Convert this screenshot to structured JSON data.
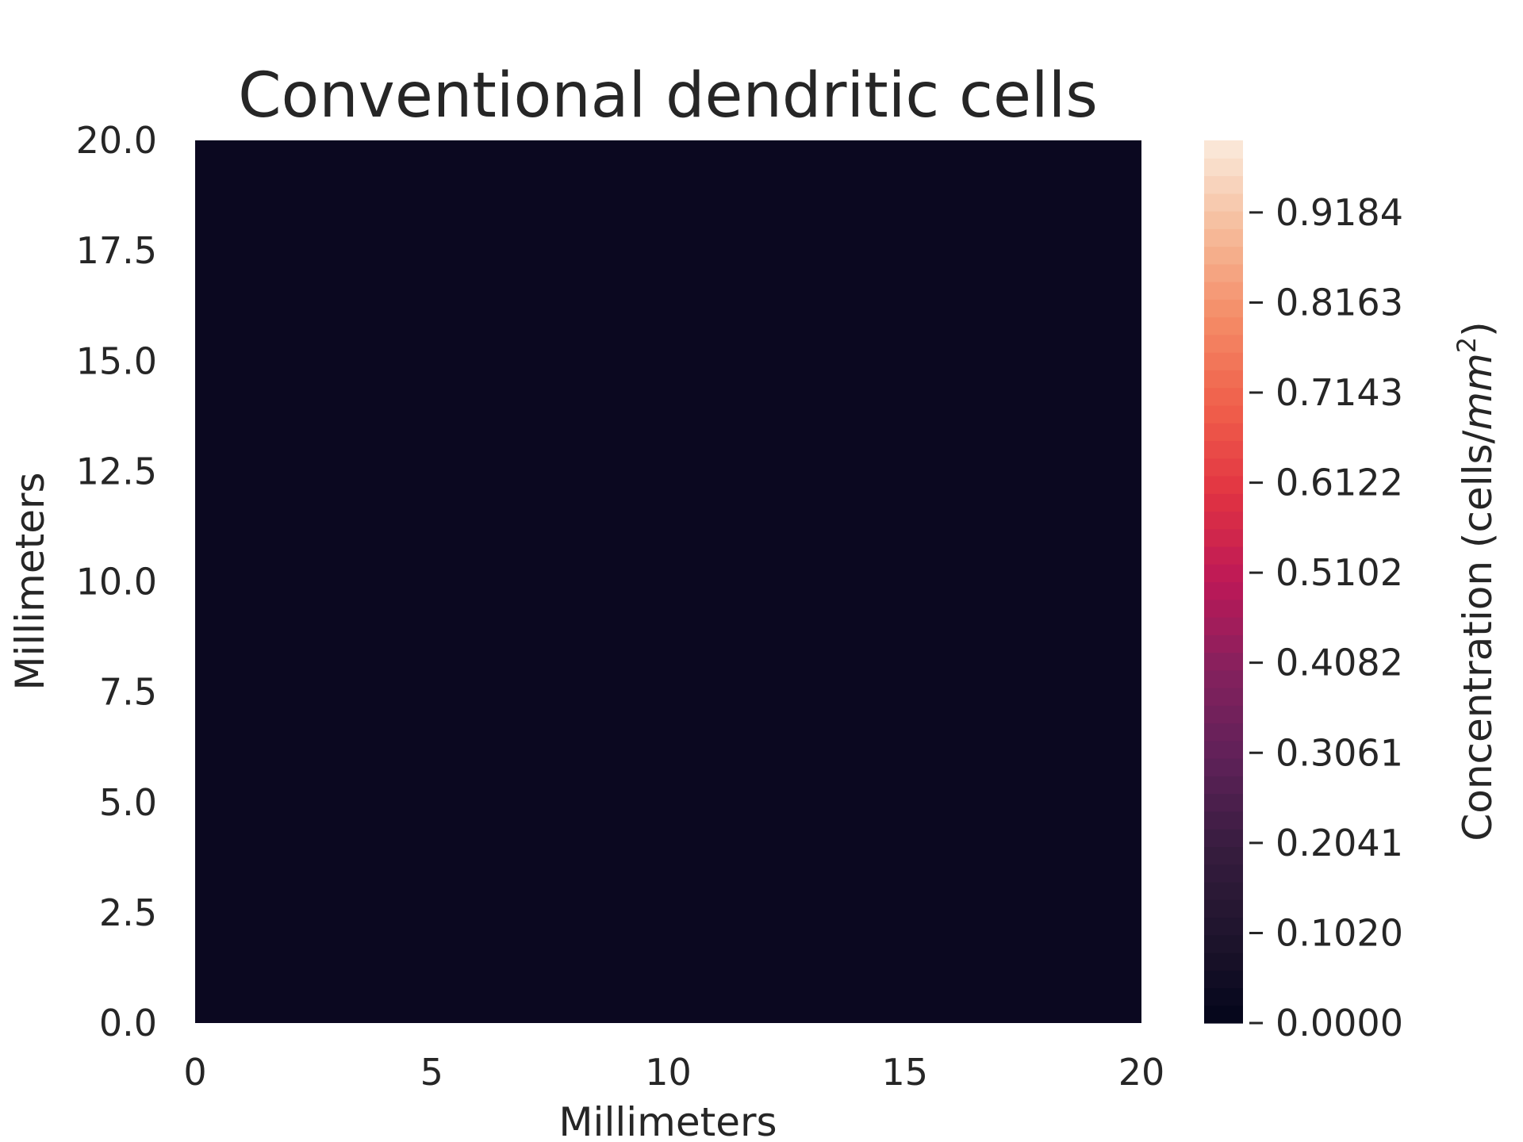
{
  "chart_data": {
    "type": "heatmap",
    "title": "Conventional dendritic cells",
    "xlabel": "Millimeters",
    "ylabel": "Millimeters",
    "xlim": [
      0,
      20
    ],
    "ylim": [
      0,
      20
    ],
    "x_ticks": [
      "0",
      "5",
      "10",
      "15",
      "20"
    ],
    "y_ticks": [
      "0.0",
      "2.5",
      "5.0",
      "7.5",
      "10.0",
      "12.5",
      "15.0",
      "17.5",
      "20.0"
    ],
    "grid": false,
    "value": 0.0,
    "colorbar": {
      "label": "Concentration (cells/",
      "label_unit": "mm",
      "label_unit_exp": "2",
      "label_close": ")",
      "range": [
        0,
        1
      ],
      "ticks": [
        "0.0000",
        "0.1020",
        "0.2041",
        "0.3061",
        "0.4082",
        "0.5102",
        "0.6122",
        "0.7143",
        "0.8163",
        "0.9184"
      ],
      "colormap": "rocket"
    },
    "colors": {
      "heatmap_fill": "#0b0820"
    }
  }
}
